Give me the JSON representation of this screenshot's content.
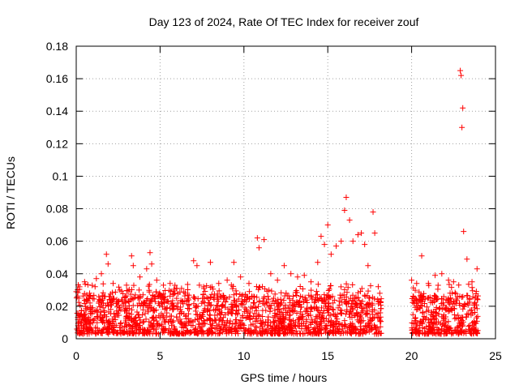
{
  "chart_data": {
    "type": "scatter",
    "title": "Day 123 of 2024, Rate Of TEC Index for receiver zouf",
    "xlabel": "GPS time / hours",
    "ylabel": "ROTI / TECUs",
    "xlim": [
      0,
      25
    ],
    "ylim": [
      0,
      0.18
    ],
    "x_ticks": [
      "0",
      "5",
      "10",
      "15",
      "20",
      "25"
    ],
    "y_ticks": [
      "0",
      "0.02",
      "0.04",
      "0.06",
      "0.08",
      "0.1",
      "0.12",
      "0.14",
      "0.16",
      "0.18"
    ],
    "grid": true,
    "marker": "+",
    "color": "#ff0000",
    "series": [
      {
        "name": "ROTI",
        "notes": "Dense cluster of points between 0.002 and ~0.03 TECUs from 0 to 18.2 h and from 20 to 24 h (data gap ~18.2-20 h). Representative peak/outlier points listed below.",
        "x": [
          0.0,
          0.2,
          0.5,
          0.8,
          1.2,
          1.5,
          1.8,
          1.9,
          2.2,
          2.6,
          3.0,
          3.3,
          3.4,
          3.8,
          4.2,
          4.4,
          4.5,
          4.8,
          5.2,
          5.6,
          6.0,
          6.5,
          7.0,
          7.2,
          7.6,
          8.0,
          8.5,
          9.0,
          9.4,
          9.8,
          10.3,
          10.8,
          10.9,
          11.2,
          11.6,
          12.0,
          12.4,
          12.8,
          13.2,
          13.6,
          14.0,
          14.4,
          14.6,
          14.8,
          15.0,
          15.2,
          15.5,
          15.8,
          16.0,
          16.1,
          16.3,
          16.5,
          16.8,
          17.0,
          17.2,
          17.4,
          17.7,
          17.8,
          18.1,
          20.0,
          20.3,
          20.6,
          21.0,
          21.4,
          21.8,
          22.2,
          22.5,
          22.9,
          22.95,
          23.0,
          23.05,
          23.1,
          23.3,
          23.6,
          23.9
        ],
        "y": [
          0.029,
          0.032,
          0.035,
          0.028,
          0.037,
          0.04,
          0.052,
          0.046,
          0.034,
          0.03,
          0.033,
          0.051,
          0.045,
          0.038,
          0.043,
          0.053,
          0.046,
          0.036,
          0.033,
          0.034,
          0.031,
          0.028,
          0.048,
          0.045,
          0.032,
          0.047,
          0.034,
          0.036,
          0.047,
          0.038,
          0.034,
          0.062,
          0.056,
          0.061,
          0.04,
          0.036,
          0.045,
          0.04,
          0.038,
          0.039,
          0.035,
          0.047,
          0.063,
          0.058,
          0.07,
          0.052,
          0.057,
          0.06,
          0.079,
          0.087,
          0.073,
          0.06,
          0.064,
          0.065,
          0.058,
          0.045,
          0.078,
          0.065,
          0.028,
          0.036,
          0.034,
          0.051,
          0.034,
          0.039,
          0.04,
          0.036,
          0.035,
          0.165,
          0.162,
          0.13,
          0.142,
          0.066,
          0.049,
          0.035,
          0.043
        ]
      }
    ]
  }
}
